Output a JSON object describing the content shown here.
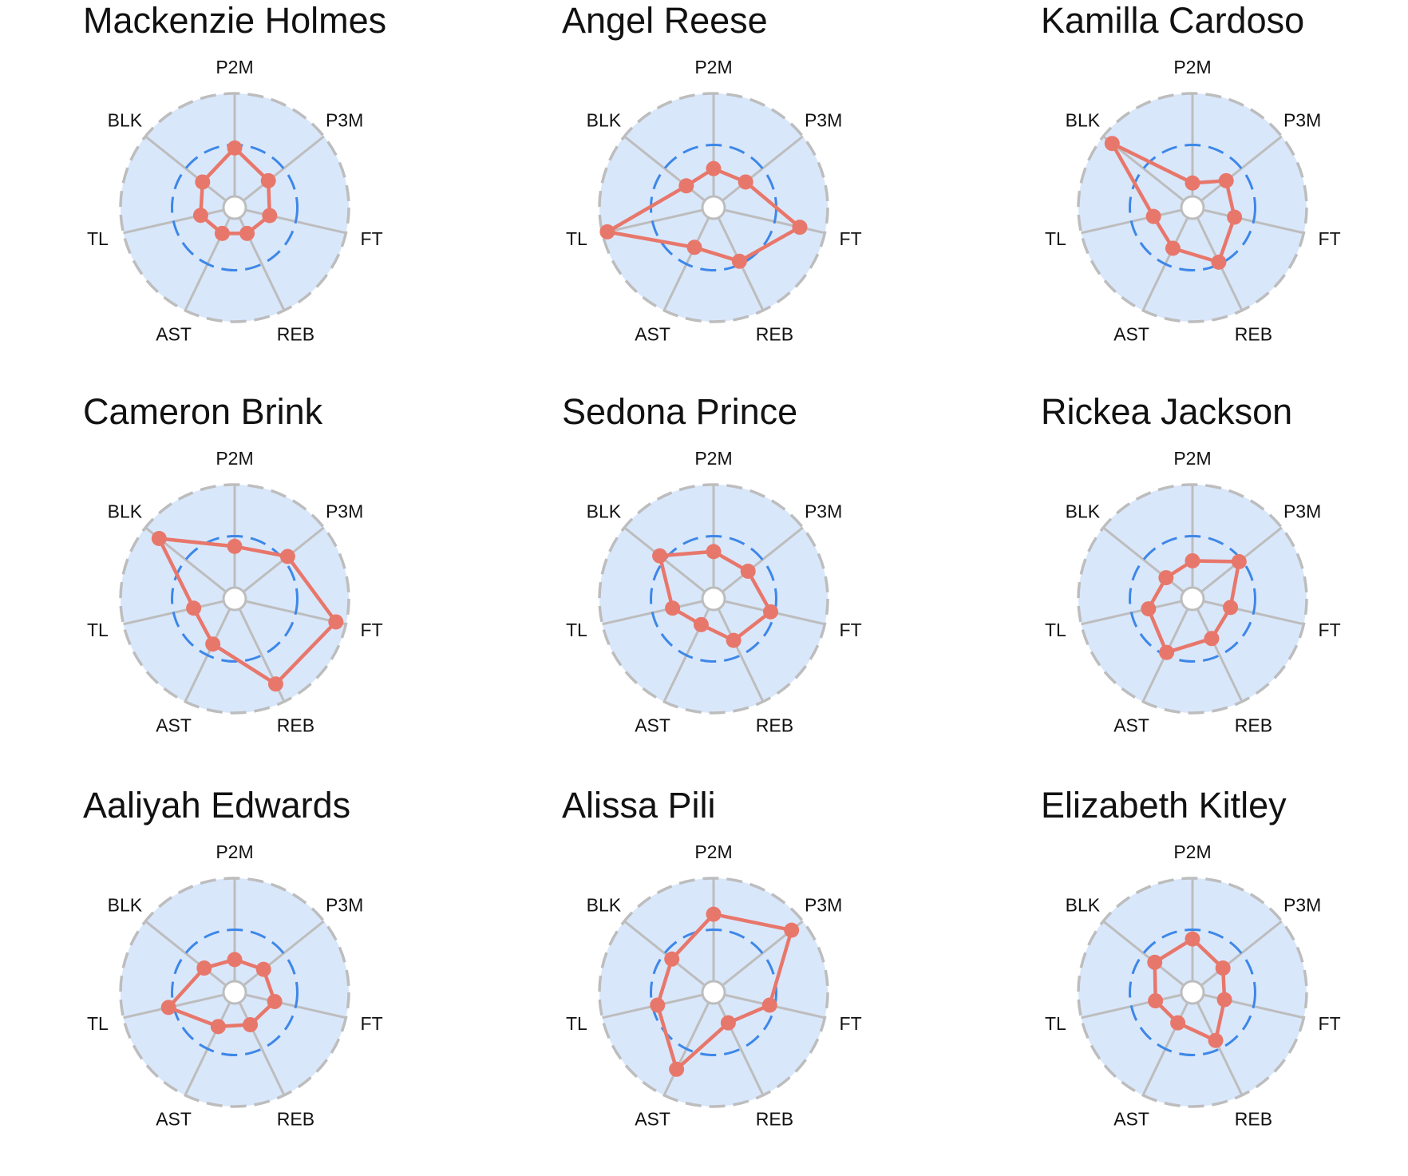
{
  "colors": {
    "background": "#d9e7fb",
    "spoke": "#bdbdbd",
    "outer_ring": "#bdbdbd",
    "reference_ring": "#3d87e8",
    "series_line": "#e8776b",
    "series_point": "#e8776b"
  },
  "chart_data": [
    {
      "type": "radar",
      "title": "Mackenzie Holmes",
      "axes": [
        "P2M",
        "P3M",
        "FT",
        "REB",
        "AST",
        "TL",
        "BLK"
      ],
      "rlim": [
        0,
        1
      ],
      "reference_level": 0.5,
      "values": [
        0.47,
        0.31,
        0.24,
        0.17,
        0.17,
        0.23,
        0.29
      ]
    },
    {
      "type": "radar",
      "title": "Angel Reese",
      "axes": [
        "P2M",
        "P3M",
        "FT",
        "REB",
        "AST",
        "TL",
        "BLK"
      ],
      "rlim": [
        0,
        1
      ],
      "reference_level": 0.5,
      "values": [
        0.27,
        0.29,
        0.75,
        0.47,
        0.32,
        0.95,
        0.23
      ]
    },
    {
      "type": "radar",
      "title": "Kamilla Cardoso",
      "axes": [
        "P2M",
        "P3M",
        "FT",
        "REB",
        "AST",
        "TL",
        "BLK"
      ],
      "rlim": [
        0,
        1
      ],
      "reference_level": 0.5,
      "values": [
        0.13,
        0.31,
        0.31,
        0.48,
        0.33,
        0.28,
        0.89
      ]
    },
    {
      "type": "radar",
      "title": "Cameron Brink",
      "axes": [
        "P2M",
        "P3M",
        "FT",
        "REB",
        "AST",
        "TL",
        "BLK"
      ],
      "rlim": [
        0,
        1
      ],
      "reference_level": 0.5,
      "values": [
        0.4,
        0.55,
        0.9,
        0.81,
        0.38,
        0.3,
        0.83
      ]
    },
    {
      "type": "radar",
      "title": "Sedona Prince",
      "axes": [
        "P2M",
        "P3M",
        "FT",
        "REB",
        "AST",
        "TL",
        "BLK"
      ],
      "rlim": [
        0,
        1
      ],
      "reference_level": 0.5,
      "values": [
        0.35,
        0.32,
        0.46,
        0.34,
        0.17,
        0.3,
        0.56
      ]
    },
    {
      "type": "radar",
      "title": "Rickea Jackson",
      "axes": [
        "P2M",
        "P3M",
        "FT",
        "REB",
        "AST",
        "TL",
        "BLK"
      ],
      "rlim": [
        0,
        1
      ],
      "reference_level": 0.5,
      "values": [
        0.26,
        0.47,
        0.27,
        0.32,
        0.47,
        0.33,
        0.22
      ]
    },
    {
      "type": "radar",
      "title": "Aaliyah Edwards",
      "axes": [
        "P2M",
        "P3M",
        "FT",
        "REB",
        "AST",
        "TL",
        "BLK"
      ],
      "rlim": [
        0,
        1
      ],
      "reference_level": 0.5,
      "values": [
        0.21,
        0.25,
        0.29,
        0.24,
        0.26,
        0.55,
        0.27
      ]
    },
    {
      "type": "radar",
      "title": "Alissa Pili",
      "axes": [
        "P2M",
        "P3M",
        "FT",
        "REB",
        "AST",
        "TL",
        "BLK"
      ],
      "rlim": [
        0,
        1
      ],
      "reference_level": 0.5,
      "values": [
        0.65,
        0.86,
        0.45,
        0.22,
        0.72,
        0.45,
        0.41
      ]
    },
    {
      "type": "radar",
      "title": "Elizabeth Kitley",
      "axes": [
        "P2M",
        "P3M",
        "FT",
        "REB",
        "AST",
        "TL",
        "BLK"
      ],
      "rlim": [
        0,
        1
      ],
      "reference_level": 0.5,
      "values": [
        0.41,
        0.27,
        0.21,
        0.41,
        0.22,
        0.26,
        0.36
      ]
    }
  ]
}
